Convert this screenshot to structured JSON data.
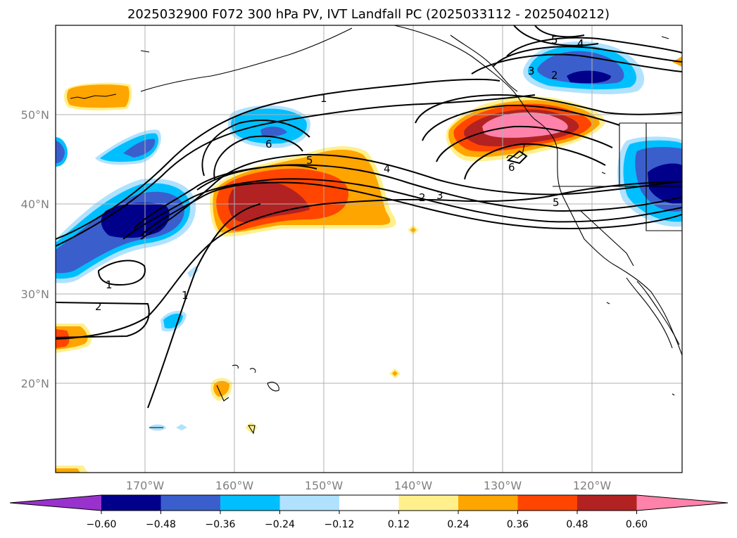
{
  "title": "2025032900 F072 300 hPa PV, IVT Landfall PC (2025033112 - 2025040212)",
  "map": {
    "lat_labels": [
      "50°N",
      "40°N",
      "30°N",
      "20°N"
    ],
    "lon_labels": [
      "170°W",
      "160°W",
      "150°W",
      "140°W",
      "130°W",
      "120°W"
    ],
    "contour_labels": [
      "1",
      "2",
      "3",
      "4",
      "5",
      "6",
      "1",
      "2",
      "3",
      "4",
      "5",
      "6",
      "5",
      "4",
      "3",
      "2",
      "5",
      "1",
      "2",
      "1"
    ]
  },
  "colorbar": {
    "labels": [
      "−0.60",
      "−0.48",
      "−0.36",
      "−0.24",
      "−0.12",
      "0.12",
      "0.24",
      "0.36",
      "0.48",
      "0.60"
    ],
    "colors": {
      "neg_extend": "#9932cc",
      "neg5": "#00008b",
      "neg4": "#3a5fcd",
      "neg3": "#00bfff",
      "neg2": "#b0e2ff",
      "neutral": "#ffffff",
      "pos2": "#fff08c",
      "pos3": "#ffa500",
      "pos4": "#ff4500",
      "pos5": "#b22222",
      "pos6": "#ff82ab"
    }
  }
}
